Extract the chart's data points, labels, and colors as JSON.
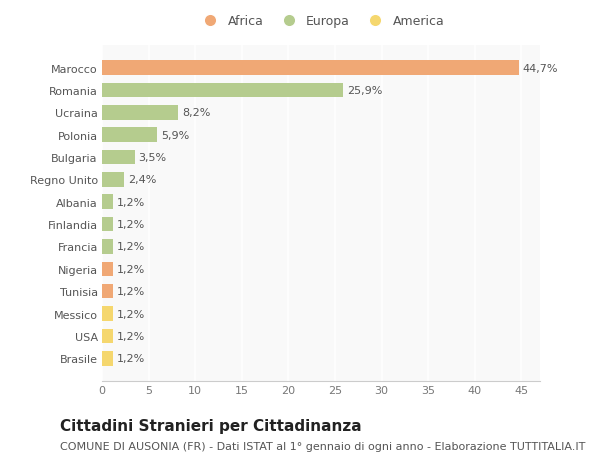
{
  "categories": [
    "Brasile",
    "USA",
    "Messico",
    "Tunisia",
    "Nigeria",
    "Francia",
    "Finlandia",
    "Albania",
    "Regno Unito",
    "Bulgaria",
    "Polonia",
    "Ucraina",
    "Romania",
    "Marocco"
  ],
  "values": [
    1.2,
    1.2,
    1.2,
    1.2,
    1.2,
    1.2,
    1.2,
    1.2,
    2.4,
    3.5,
    5.9,
    8.2,
    25.9,
    44.7
  ],
  "colors": [
    "#f5d76e",
    "#f5d76e",
    "#f5d76e",
    "#f0a875",
    "#f0a875",
    "#b5cc8e",
    "#b5cc8e",
    "#b5cc8e",
    "#b5cc8e",
    "#b5cc8e",
    "#b5cc8e",
    "#b5cc8e",
    "#b5cc8e",
    "#f0a875"
  ],
  "labels": [
    "1,2%",
    "1,2%",
    "1,2%",
    "1,2%",
    "1,2%",
    "1,2%",
    "1,2%",
    "1,2%",
    "2,4%",
    "3,5%",
    "5,9%",
    "8,2%",
    "25,9%",
    "44,7%"
  ],
  "legend": [
    {
      "label": "Africa",
      "color": "#f0a875"
    },
    {
      "label": "Europa",
      "color": "#b5cc8e"
    },
    {
      "label": "America",
      "color": "#f5d76e"
    }
  ],
  "title": "Cittadini Stranieri per Cittadinanza",
  "subtitle": "COMUNE DI AUSONIA (FR) - Dati ISTAT al 1° gennaio di ogni anno - Elaborazione TUTTITALIA.IT",
  "xlim": [
    0,
    47
  ],
  "background_color": "#ffffff",
  "plot_bg_color": "#f9f9f9",
  "grid_color": "#ffffff",
  "title_fontsize": 11,
  "subtitle_fontsize": 8,
  "label_fontsize": 8,
  "tick_fontsize": 8
}
